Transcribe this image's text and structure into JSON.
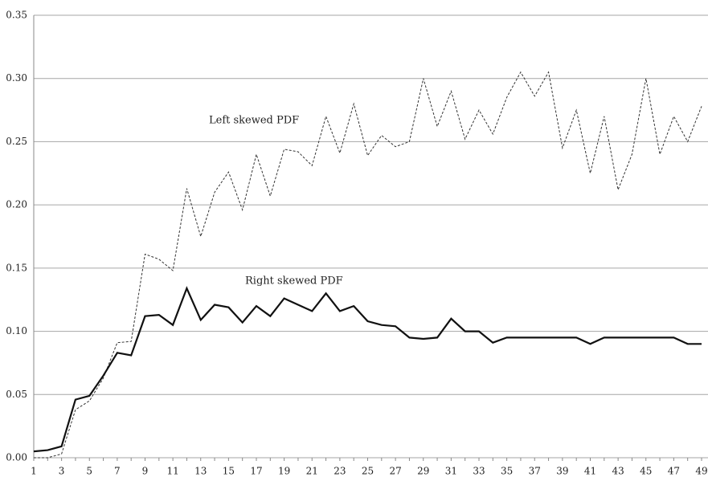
{
  "chart_data": {
    "type": "line",
    "categories": [
      "1",
      null,
      "3",
      null,
      "5",
      null,
      "7",
      null,
      "9",
      null,
      "11",
      null,
      "13",
      null,
      "15",
      null,
      "17",
      null,
      "19",
      null,
      "21",
      null,
      "23",
      null,
      "25",
      null,
      "27",
      null,
      "29",
      null,
      "31",
      null,
      "33",
      null,
      "35",
      null,
      "37",
      null,
      "39",
      null,
      "41",
      null,
      "43",
      null,
      "45",
      null,
      "47",
      null,
      "49"
    ],
    "series": [
      {
        "name": "Left skewed PDF",
        "color": "#333333",
        "dash": true,
        "values": [
          0.0,
          0.0,
          0.003,
          0.038,
          0.045,
          0.063,
          0.091,
          0.092,
          0.161,
          0.157,
          0.148,
          0.213,
          0.175,
          0.21,
          0.226,
          0.196,
          0.24,
          0.207,
          0.244,
          0.242,
          0.231,
          0.27,
          0.241,
          0.28,
          0.239,
          0.255,
          0.246,
          0.25,
          0.3,
          0.262,
          0.29,
          0.252,
          0.275,
          0.256,
          0.285,
          0.305,
          0.286,
          0.305,
          0.245,
          0.275,
          0.225,
          0.27,
          0.212,
          0.24,
          0.3,
          0.24,
          0.27,
          0.25,
          0.278
        ]
      },
      {
        "name": "Right skewed PDF",
        "color": "#111111",
        "dash": false,
        "values": [
          0.005,
          0.006,
          0.009,
          0.046,
          0.049,
          0.065,
          0.083,
          0.081,
          0.112,
          0.113,
          0.105,
          0.134,
          0.109,
          0.121,
          0.119,
          0.107,
          0.12,
          0.112,
          0.126,
          0.121,
          0.116,
          0.13,
          0.116,
          0.12,
          0.108,
          0.105,
          0.104,
          0.095,
          0.094,
          0.095,
          0.11,
          0.1,
          0.1,
          0.091,
          0.095,
          0.095,
          0.095,
          0.095,
          0.095,
          0.095,
          0.09,
          0.095,
          0.095,
          0.095,
          0.095,
          0.095,
          0.095,
          0.09,
          0.09
        ]
      }
    ],
    "ylim": [
      0,
      0.35
    ],
    "yticks": [
      {
        "value": 0,
        "label": "0.00"
      },
      0.05,
      {
        "value": 0.1,
        "label": "0.10"
      },
      0.15,
      {
        "value": 0.2,
        "label": "0.20"
      },
      0.25,
      {
        "value": 0.3,
        "label": "0.30"
      },
      0.35
    ],
    "grid": true
  }
}
